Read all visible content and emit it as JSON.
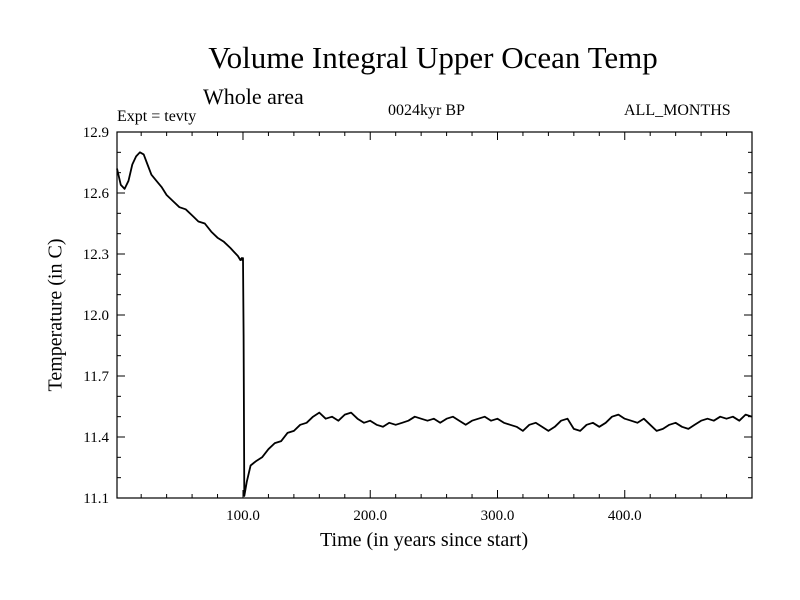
{
  "chart_data": {
    "type": "line",
    "title": "Volume Integral Upper Ocean Temp",
    "subtitle": "Whole area",
    "annotations": {
      "experiment": "Expt = tevty",
      "period": "0024kyr BP",
      "months": "ALL_MONTHS"
    },
    "xlabel": "Time (in years since start)",
    "ylabel": "Temperature (in C)",
    "xlim": [
      1,
      500
    ],
    "ylim": [
      11.1,
      12.9
    ],
    "xticks": [
      100.0,
      200.0,
      300.0,
      400.0
    ],
    "xtick_labels": [
      "100.0",
      "200.0",
      "300.0",
      "400.0"
    ],
    "yticks": [
      11.1,
      11.4,
      11.7,
      12.0,
      12.3,
      12.6,
      12.9
    ],
    "ytick_labels": [
      "11.1",
      "11.4",
      "11.7",
      "12.0",
      "12.3",
      "12.6",
      "12.9"
    ],
    "grid": false,
    "line_color": "#000000",
    "series": [
      {
        "x": [
          1,
          4,
          7,
          10,
          13,
          16,
          19,
          22,
          25,
          28,
          32,
          36,
          40,
          45,
          50,
          55,
          60,
          65,
          70,
          75,
          80,
          85,
          90,
          93,
          96,
          98,
          99,
          99.5,
          100,
          100.5,
          101,
          103,
          106,
          110,
          115,
          120,
          125,
          130,
          135,
          140,
          145,
          150,
          155,
          160,
          165,
          170,
          175,
          180,
          185,
          190,
          195,
          200,
          205,
          210,
          215,
          220,
          225,
          230,
          235,
          240,
          245,
          250,
          255,
          260,
          265,
          270,
          275,
          280,
          285,
          290,
          295,
          300,
          305,
          310,
          315,
          320,
          325,
          330,
          335,
          340,
          345,
          350,
          355,
          360,
          365,
          370,
          375,
          380,
          385,
          390,
          395,
          400,
          405,
          410,
          415,
          420,
          425,
          430,
          435,
          440,
          445,
          450,
          455,
          460,
          465,
          470,
          475,
          480,
          485,
          490,
          495,
          500
        ],
        "y": [
          12.72,
          12.64,
          12.62,
          12.66,
          12.74,
          12.78,
          12.8,
          12.79,
          12.74,
          12.69,
          12.66,
          12.63,
          12.59,
          12.56,
          12.53,
          12.52,
          12.49,
          12.46,
          12.45,
          12.41,
          12.38,
          12.36,
          12.33,
          12.31,
          12.29,
          12.27,
          12.28,
          12.27,
          12.28,
          11.9,
          11.11,
          11.18,
          11.26,
          11.28,
          11.3,
          11.34,
          11.37,
          11.38,
          11.42,
          11.43,
          11.46,
          11.47,
          11.5,
          11.52,
          11.49,
          11.5,
          11.48,
          11.51,
          11.52,
          11.49,
          11.47,
          11.48,
          11.46,
          11.45,
          11.47,
          11.46,
          11.47,
          11.48,
          11.5,
          11.49,
          11.48,
          11.49,
          11.47,
          11.49,
          11.5,
          11.48,
          11.46,
          11.48,
          11.49,
          11.5,
          11.48,
          11.49,
          11.47,
          11.46,
          11.45,
          11.43,
          11.46,
          11.47,
          11.45,
          11.43,
          11.45,
          11.48,
          11.49,
          11.44,
          11.43,
          11.46,
          11.47,
          11.45,
          11.47,
          11.5,
          11.51,
          11.49,
          11.48,
          11.47,
          11.49,
          11.46,
          11.43,
          11.44,
          11.46,
          11.47,
          11.45,
          11.44,
          11.46,
          11.48,
          11.49,
          11.48,
          11.5,
          11.49,
          11.5,
          11.48,
          11.51,
          11.5
        ]
      }
    ]
  }
}
